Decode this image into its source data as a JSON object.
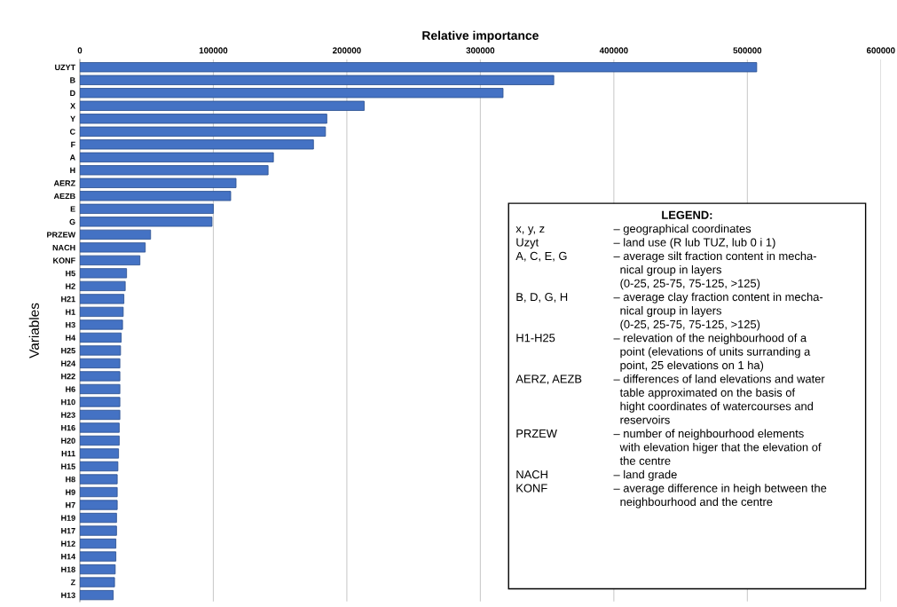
{
  "chart_data": {
    "type": "bar",
    "orientation": "horizontal",
    "xlabel": "Relative importance",
    "ylabel": "Variables",
    "categories": [
      "UZYT",
      "B",
      "D",
      "X",
      "Y",
      "C",
      "F",
      "A",
      "H",
      "AERZ",
      "AEZB",
      "E",
      "G",
      "PRZEW",
      "NACH",
      "KONF",
      "H5",
      "H2",
      "H21",
      "H1",
      "H3",
      "H4",
      "H25",
      "H24",
      "H22",
      "H6",
      "H10",
      "H23",
      "H16",
      "H20",
      "H11",
      "H15",
      "H8",
      "H9",
      "H7",
      "H19",
      "H17",
      "H12",
      "H14",
      "H18",
      "Z",
      "H13"
    ],
    "values": [
      507000,
      355000,
      317000,
      213000,
      185000,
      184000,
      175000,
      145000,
      141000,
      117000,
      113000,
      100000,
      99000,
      53000,
      49000,
      45000,
      35000,
      34000,
      33000,
      32500,
      32000,
      31000,
      30500,
      30000,
      30000,
      30000,
      30000,
      30000,
      29500,
      29500,
      29000,
      28500,
      28000,
      28000,
      28000,
      27500,
      27500,
      27000,
      27000,
      26500,
      26000,
      25000
    ],
    "color": "#4472c4",
    "xlim": [
      0,
      600000
    ],
    "xticks": [
      0,
      100000,
      200000,
      300000,
      400000,
      500000,
      600000
    ],
    "grid": "x",
    "annotations": [
      "LEGEND:",
      "x, y, z – geographical coordinates",
      "Uzyt – land use (R lub TUZ, lub 0 i 1)",
      "A, C, E, G – average silt fraction content in mecha-\nnical group in layers\n(0-25, 25-75, 75-125, >125)",
      "B, D, G, H – average clay fraction content in mecha-\nnical group in layers\n(0-25, 25-75, 75-125, >125)",
      "H1-H25 – relevation of the neighbourhood of a\npoint (elevations of units surranding a\npoint, 25 elevations on 1 ha)",
      "AERZ, AEZB – differences of land elevations and water\ntable approximated on the basis of\nhight coordinates of watercourses and\nreservoirs",
      "PRZEW – number of neighbourhood elements\nwith elevation higer that the elevation of\nthe centre",
      "NACH – land grade",
      "KONF – average difference in heigh between the\nneighbourhood and the centre"
    ]
  }
}
